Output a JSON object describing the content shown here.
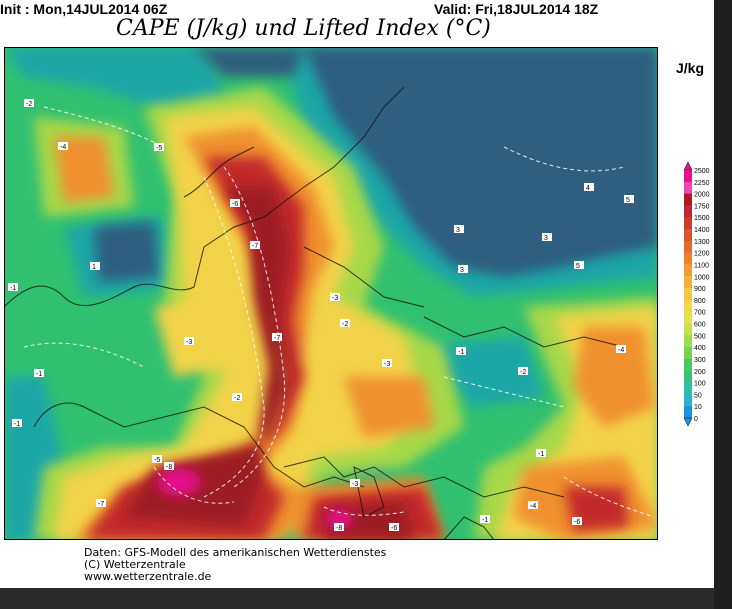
{
  "header": {
    "init": "Init : Mon,14JUL2014 06Z",
    "valid": "Valid: Fri,18JUL2014 18Z",
    "title": "CAPE (J/kg) und Lifted Index (°C)"
  },
  "legend": {
    "unit": "J/kg",
    "levels": [
      "2500",
      "2250",
      "2000",
      "1750",
      "1500",
      "1400",
      "1300",
      "1200",
      "1100",
      "1000",
      "900",
      "800",
      "700",
      "600",
      "500",
      "400",
      "300",
      "200",
      "100",
      "50",
      "10",
      "0"
    ],
    "colors": [
      "#e8108e",
      "#f046b2",
      "#b01824",
      "#c02830",
      "#cf3a2a",
      "#d9542c",
      "#e46a2a",
      "#ee8030",
      "#f39a32",
      "#f6b13a",
      "#f8c644",
      "#f5d84a",
      "#e3e14c",
      "#c7e04c",
      "#a0dc4a",
      "#74d450",
      "#4cc85c",
      "#36c07a",
      "#2ec0a4",
      "#2eb0d0",
      "#1e90e0"
    ]
  },
  "credits": {
    "line1": "Daten: GFS-Modell des amerikanischen Wetterdienstes",
    "line2": "(C) Wetterzentrale",
    "line3": "www.wetterzentrale.de"
  },
  "colors": {
    "deep_blue": "#2d5f80",
    "teal": "#1ea6a8",
    "green": "#30c070",
    "yellow_green": "#a8d84a",
    "yellow": "#f2d24a",
    "orange": "#f0902e",
    "red": "#c22a2a",
    "dark_red": "#9c1a24",
    "magenta": "#e8108e"
  }
}
